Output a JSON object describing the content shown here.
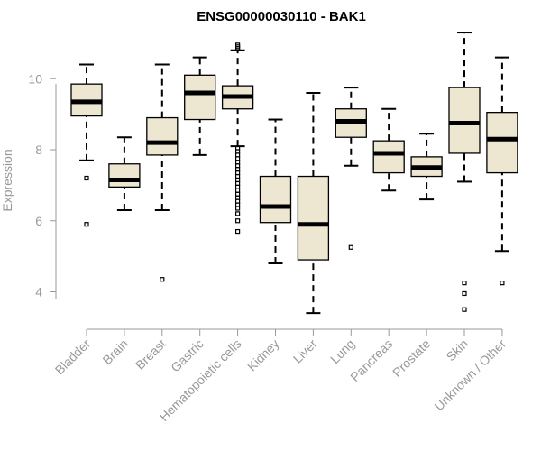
{
  "chart_data": {
    "type": "boxplot",
    "title": "ENSG00000030110 - BAK1",
    "xlabel": "",
    "ylabel": "Expression",
    "ylim": [
      3.2,
      11.2
    ],
    "yticks": [
      4,
      6,
      8,
      10
    ],
    "grid": false,
    "box_fill": "#EDE6D0",
    "median_color": "#000000",
    "categories": [
      "Bladder",
      "Brain",
      "Breast",
      "Gastric",
      "Hematopoietic cells",
      "Kidney",
      "Liver",
      "Lung",
      "Pancreas",
      "Prostate",
      "Skin",
      "Unknown / Other"
    ],
    "boxes": [
      {
        "category": "Bladder",
        "whisker_low": 7.7,
        "q1": 8.95,
        "median": 9.35,
        "q3": 9.85,
        "whisker_high": 10.4,
        "outliers": [
          7.2,
          5.9
        ]
      },
      {
        "category": "Brain",
        "whisker_low": 6.3,
        "q1": 6.95,
        "median": 7.15,
        "q3": 7.6,
        "whisker_high": 8.35,
        "outliers": []
      },
      {
        "category": "Breast",
        "whisker_low": 6.3,
        "q1": 7.85,
        "median": 8.2,
        "q3": 8.9,
        "whisker_high": 10.4,
        "outliers": [
          4.35
        ]
      },
      {
        "category": "Gastric",
        "whisker_low": 7.85,
        "q1": 8.85,
        "median": 9.6,
        "q3": 10.1,
        "whisker_high": 10.6,
        "outliers": []
      },
      {
        "category": "Hematopoietic cells",
        "whisker_low": 8.1,
        "q1": 9.15,
        "median": 9.5,
        "q3": 9.8,
        "whisker_high": 10.8,
        "outliers": [
          10.95,
          10.9,
          10.85,
          8.05,
          7.95,
          7.85,
          7.75,
          7.65,
          7.55,
          7.45,
          7.35,
          7.25,
          7.15,
          7.05,
          6.95,
          6.85,
          6.75,
          6.65,
          6.55,
          6.45,
          6.35,
          6.2,
          6.0,
          5.7
        ]
      },
      {
        "category": "Kidney",
        "whisker_low": 4.8,
        "q1": 5.95,
        "median": 6.4,
        "q3": 7.25,
        "whisker_high": 8.85,
        "outliers": []
      },
      {
        "category": "Liver",
        "whisker_low": 3.4,
        "q1": 4.9,
        "median": 5.9,
        "q3": 7.25,
        "whisker_high": 9.6,
        "outliers": []
      },
      {
        "category": "Lung",
        "whisker_low": 7.55,
        "q1": 8.35,
        "median": 8.8,
        "q3": 9.15,
        "whisker_high": 9.75,
        "outliers": [
          5.25
        ]
      },
      {
        "category": "Pancreas",
        "whisker_low": 6.85,
        "q1": 7.35,
        "median": 7.9,
        "q3": 8.25,
        "whisker_high": 9.15,
        "outliers": []
      },
      {
        "category": "Prostate",
        "whisker_low": 6.6,
        "q1": 7.25,
        "median": 7.5,
        "q3": 7.8,
        "whisker_high": 8.45,
        "outliers": []
      },
      {
        "category": "Skin",
        "whisker_low": 7.1,
        "q1": 7.9,
        "median": 8.75,
        "q3": 9.75,
        "whisker_high": 11.3,
        "outliers": [
          4.25,
          3.95,
          3.5
        ]
      },
      {
        "category": "Unknown / Other",
        "whisker_low": 5.15,
        "q1": 7.35,
        "median": 8.3,
        "q3": 9.05,
        "whisker_high": 10.6,
        "outliers": [
          4.25
        ]
      }
    ]
  }
}
